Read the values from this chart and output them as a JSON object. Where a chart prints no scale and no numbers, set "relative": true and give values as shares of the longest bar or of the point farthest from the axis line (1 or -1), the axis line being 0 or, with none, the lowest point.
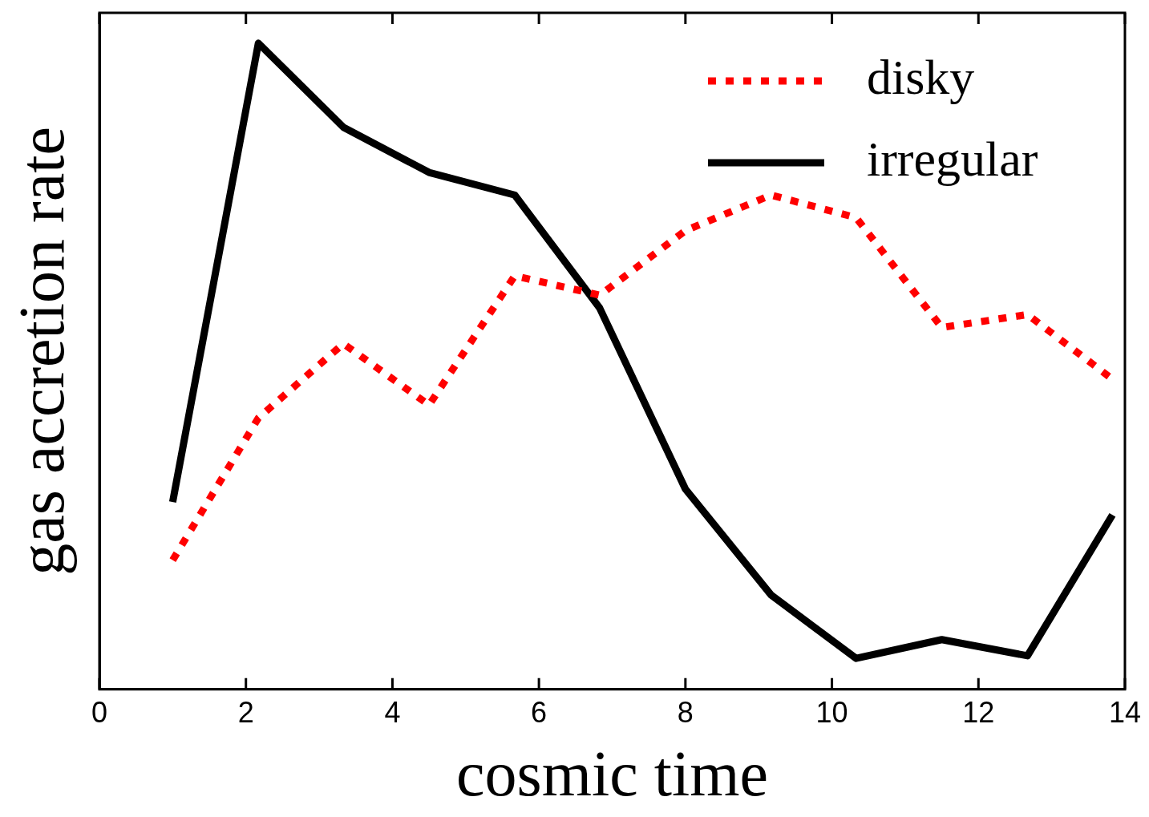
{
  "chart_data": {
    "type": "line",
    "xlabel": "cosmic time",
    "ylabel": "gas accretion rate",
    "relative": true,
    "xlim": [
      0,
      14
    ],
    "xticks": [
      0,
      2,
      4,
      6,
      8,
      10,
      12,
      14
    ],
    "grid": false,
    "legend": "top right",
    "marker": "none",
    "x": [
      1,
      2.17,
      3.33,
      4.5,
      5.67,
      6.83,
      8,
      9.17,
      10.33,
      11.5,
      12.67,
      13.83
    ],
    "series": [
      {
        "name": "disky",
        "color": "#ff0000",
        "line_style": "dotted",
        "values": [
          0.2,
          0.42,
          0.535,
          0.44,
          0.64,
          0.61,
          0.71,
          0.765,
          0.73,
          0.56,
          0.58,
          0.48
        ]
      },
      {
        "name": "irregular",
        "color": "#000000",
        "line_style": "solid",
        "values": [
          0.29,
          1,
          0.87,
          0.8,
          0.765,
          0.59,
          0.31,
          0.146,
          0.048,
          0.077,
          0.052,
          0.27
        ]
      }
    ]
  }
}
